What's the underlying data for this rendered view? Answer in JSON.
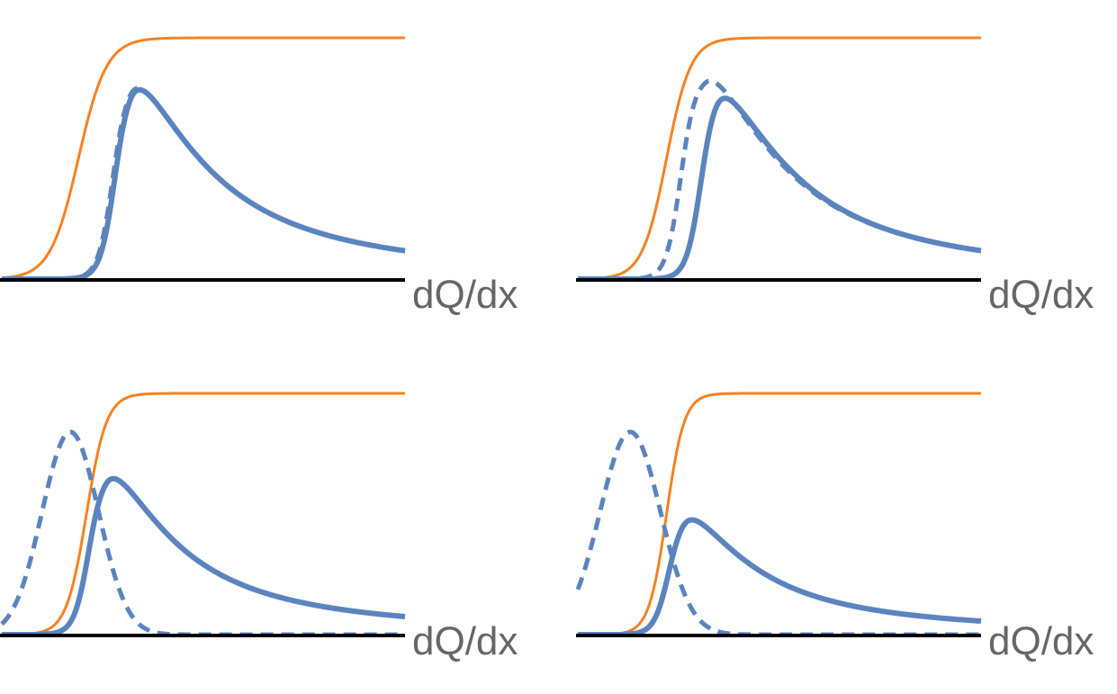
{
  "colors": {
    "blue": "#5b84bf",
    "orange": "#f58220",
    "axis": "#000000",
    "label": "#666666"
  },
  "chart_data": [
    {
      "type": "line",
      "xlabel": "dQ/dx",
      "ylabel": "",
      "title": "",
      "grid": false,
      "xlim": [
        0,
        1
      ],
      "ylim": [
        0,
        1.05
      ],
      "series": [
        {
          "style": "solid",
          "color": "orange",
          "kind": "step",
          "center": 0.19,
          "width": 0.035,
          "height": 1.0
        },
        {
          "style": "solid",
          "color": "blue",
          "kind": "peak",
          "onset": 0.24,
          "peak_x": 0.32,
          "height": 0.83,
          "decay": 0.22
        },
        {
          "style": "dashed",
          "color": "blue",
          "kind": "peak",
          "onset": 0.23,
          "peak_x": 0.32,
          "height": 0.83,
          "decay": 0.22
        }
      ]
    },
    {
      "type": "line",
      "xlabel": "dQ/dx",
      "ylabel": "",
      "title": "",
      "grid": false,
      "xlim": [
        0,
        1
      ],
      "ylim": [
        0,
        1.05
      ],
      "series": [
        {
          "style": "solid",
          "color": "orange",
          "kind": "step",
          "center": 0.22,
          "width": 0.03,
          "height": 1.0
        },
        {
          "style": "solid",
          "color": "blue",
          "kind": "peak",
          "onset": 0.27,
          "peak_x": 0.34,
          "height": 0.8,
          "decay": 0.22
        },
        {
          "style": "dashed",
          "color": "blue",
          "kind": "peak",
          "onset": 0.19,
          "peak_x": 0.32,
          "height": 0.84,
          "decay": 0.22
        }
      ]
    },
    {
      "type": "line",
      "xlabel": "dQ/dx",
      "ylabel": "",
      "title": "",
      "grid": false,
      "xlim": [
        0,
        1
      ],
      "ylim": [
        0,
        1.05
      ],
      "series": [
        {
          "style": "solid",
          "color": "orange",
          "kind": "step",
          "center": 0.21,
          "width": 0.025,
          "height": 1.0
        },
        {
          "style": "solid",
          "color": "blue",
          "kind": "peak",
          "onset": 0.17,
          "peak_x": 0.26,
          "height": 0.68,
          "decay": 0.2
        },
        {
          "style": "dashed",
          "color": "blue",
          "kind": "gauss",
          "peak_x": 0.17,
          "height": 0.84,
          "sigma": 0.07
        }
      ]
    },
    {
      "type": "line",
      "xlabel": "dQ/dx",
      "ylabel": "",
      "title": "",
      "grid": false,
      "xlim": [
        0,
        1
      ],
      "ylim": [
        0,
        1.05
      ],
      "series": [
        {
          "style": "solid",
          "color": "orange",
          "kind": "step",
          "center": 0.22,
          "width": 0.022,
          "height": 1.0
        },
        {
          "style": "solid",
          "color": "blue",
          "kind": "peak",
          "onset": 0.19,
          "peak_x": 0.26,
          "height": 0.51,
          "decay": 0.2
        },
        {
          "style": "dashed",
          "color": "blue",
          "kind": "gauss",
          "peak_x": 0.13,
          "height": 0.84,
          "sigma": 0.075
        }
      ]
    }
  ]
}
